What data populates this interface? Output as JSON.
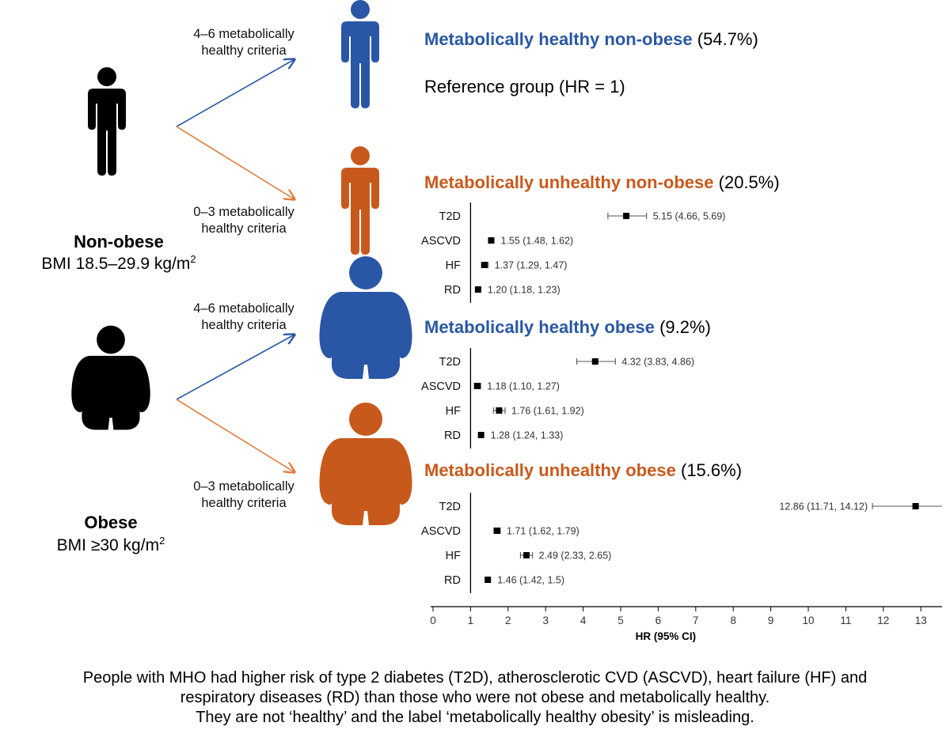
{
  "left": {
    "nonobese": {
      "title": "Non-obese",
      "bmi": "BMI 18.5–29.9 kg/m",
      "bmi_sup": "2"
    },
    "obese": {
      "title": "Obese",
      "bmi": "BMI ≥30 kg/m",
      "bmi_sup": "2"
    }
  },
  "criteria": {
    "healthy": "4–6 metabolically healthy criteria",
    "unhealthy": "0–3 metabolically healthy criteria"
  },
  "colors": {
    "blue": "#2a57a5",
    "orange": "#c8591c",
    "black": "#000000"
  },
  "groups": [
    {
      "name": "Metabolically healthy non-obese",
      "pct": "(54.7%)",
      "color": "blue",
      "reference": "Reference group (HR = 1)"
    },
    {
      "name": "Metabolically unhealthy non-obese",
      "pct": "(20.5%)",
      "color": "orange"
    },
    {
      "name": "Metabolically healthy obese",
      "pct": "(9.2%)",
      "color": "blue"
    },
    {
      "name": "Metabolically unhealthy obese",
      "pct": "(15.6%)",
      "color": "orange"
    }
  ],
  "chart_data": {
    "type": "forest",
    "xlabel": "HR (95% CI)",
    "xlim": [
      0,
      13.5
    ],
    "xticks": [
      0,
      1,
      2,
      3,
      4,
      5,
      6,
      7,
      8,
      9,
      10,
      11,
      12,
      13
    ],
    "reference_line": 1,
    "panels": [
      {
        "group": "Metabolically unhealthy non-obese",
        "rows": [
          {
            "outcome": "T2D",
            "hr": 5.15,
            "lo": 4.66,
            "hi": 5.69,
            "label": "5.15 (4.66, 5.69)"
          },
          {
            "outcome": "ASCVD",
            "hr": 1.55,
            "lo": 1.48,
            "hi": 1.62,
            "label": "1.55 (1.48, 1.62)"
          },
          {
            "outcome": "HF",
            "hr": 1.37,
            "lo": 1.29,
            "hi": 1.47,
            "label": "1.37 (1.29, 1.47)"
          },
          {
            "outcome": "RD",
            "hr": 1.2,
            "lo": 1.18,
            "hi": 1.23,
            "label": "1.20 (1.18, 1.23)"
          }
        ]
      },
      {
        "group": "Metabolically healthy obese",
        "rows": [
          {
            "outcome": "T2D",
            "hr": 4.32,
            "lo": 3.83,
            "hi": 4.86,
            "label": "4.32 (3.83, 4.86)"
          },
          {
            "outcome": "ASCVD",
            "hr": 1.18,
            "lo": 1.1,
            "hi": 1.27,
            "label": "1.18 (1.10, 1.27)"
          },
          {
            "outcome": "HF",
            "hr": 1.76,
            "lo": 1.61,
            "hi": 1.92,
            "label": "1.76 (1.61, 1.92)"
          },
          {
            "outcome": "RD",
            "hr": 1.28,
            "lo": 1.24,
            "hi": 1.33,
            "label": "1.28 (1.24, 1.33)"
          }
        ]
      },
      {
        "group": "Metabolically unhealthy obese",
        "rows": [
          {
            "outcome": "T2D",
            "hr": 12.86,
            "lo": 11.71,
            "hi": 14.12,
            "label": "12.86 (11.71, 14.12)",
            "label_left": true
          },
          {
            "outcome": "ASCVD",
            "hr": 1.71,
            "lo": 1.62,
            "hi": 1.79,
            "label": "1.71 (1.62, 1.79)"
          },
          {
            "outcome": "HF",
            "hr": 2.49,
            "lo": 2.33,
            "hi": 2.65,
            "label": "2.49 (2.33, 2.65)"
          },
          {
            "outcome": "RD",
            "hr": 1.46,
            "lo": 1.42,
            "hi": 1.5,
            "label": "1.46 (1.42, 1.5)"
          }
        ]
      }
    ]
  },
  "caption": {
    "line1": "People with MHO had higher risk of type 2 diabetes (T2D), atherosclerotic CVD (ASCVD), heart failure (HF) and",
    "line2": "respiratory diseases (RD) than those who were not obese and metabolically healthy.",
    "line3": "They are not ‘healthy’ and the label ‘metabolically healthy obesity’ is misleading."
  }
}
